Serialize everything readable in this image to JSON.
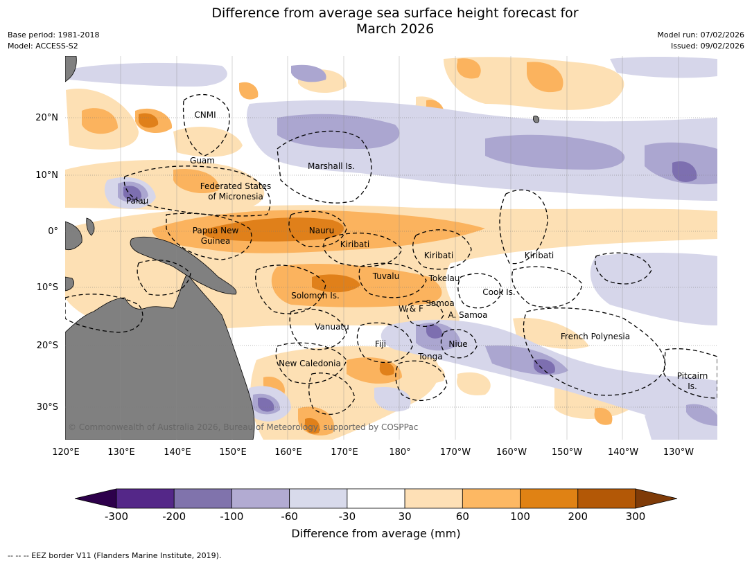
{
  "header": {
    "title_line1": "Difference from average sea surface height forecast for",
    "title_line2": "March 2026",
    "base_period": "Base period: 1981-2018",
    "model": "Model: ACCESS-S2",
    "model_run": "Model run: 07/02/2026",
    "issued": "Issued: 09/02/2026"
  },
  "map": {
    "longitude_ticks": [
      "120°E",
      "130°E",
      "140°E",
      "150°E",
      "160°E",
      "170°E",
      "180°",
      "170°W",
      "160°W",
      "150°W",
      "140°W",
      "130°W"
    ],
    "latitude_ticks": [
      "20°N",
      "10°N",
      "0°",
      "10°S",
      "20°S",
      "30°S"
    ],
    "credit": "© Commonwealth of Australia 2026, Bureau of Meteorology, supported by COSPPac",
    "place_labels": [
      "CNMI",
      "Guam",
      "Marshall Is.",
      "Federated States",
      "of Micronesia",
      "Palau",
      "Papua New",
      "Guinea",
      "Nauru",
      "Kiribati",
      "Kiribati",
      "Kiribati",
      "Tuvalu",
      "Tokelau",
      "Cook Is.",
      "Solomon Is.",
      "Samoa",
      "W & F",
      "A. Samoa",
      "Vanuatu",
      "Fiji",
      "Niue",
      "Tonga",
      "French Polynesia",
      "New Caledonia",
      "Pitcairn",
      "Is."
    ],
    "colors": {
      "land": "#808080",
      "neg_light": "#d6d6ea",
      "neg_mid": "#aba6d0",
      "neg_dark": "#7d6fb0",
      "pos_light": "#fde0b4",
      "pos_mid": "#fbb35e",
      "pos_dark": "#e0801a"
    }
  },
  "colorbar": {
    "ticks": [
      "-300",
      "-200",
      "-100",
      "-60",
      "-30",
      "30",
      "60",
      "100",
      "200",
      "300"
    ],
    "colors": [
      "#2d004b",
      "#542788",
      "#8073ac",
      "#b2abd2",
      "#d8daeb",
      "#ffffff",
      "#fee0b6",
      "#fdb863",
      "#e08214",
      "#b35806",
      "#7f3b08"
    ],
    "label": "Difference from average (mm)"
  },
  "footer": {
    "eez_legend": "--  --  -- EEZ border V11 (Flanders Marine Institute, 2019)."
  }
}
